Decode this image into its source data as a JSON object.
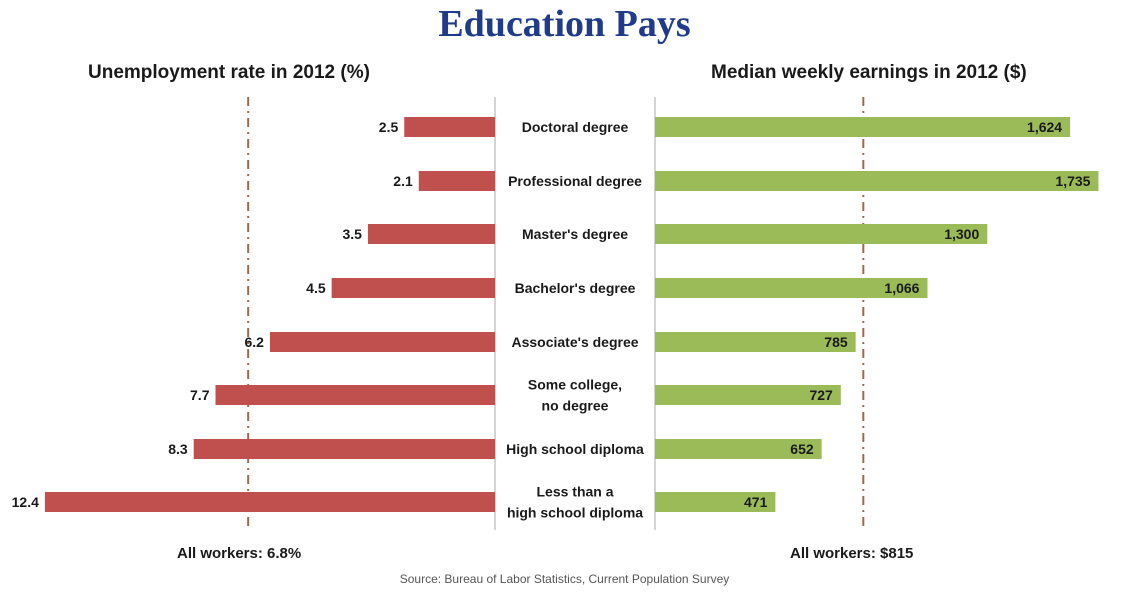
{
  "title": "Education Pays",
  "chart_data": [
    {
      "type": "bar",
      "orientation": "horizontal",
      "title": "Unemployment rate in 2012 (%)",
      "categories": [
        "Doctoral degree",
        "Professional degree",
        "Master's degree",
        "Bachelor's degree",
        "Associate's degree",
        "Some college, no degree",
        "High school diploma",
        "Less than a high school diploma"
      ],
      "values": [
        2.5,
        2.1,
        3.5,
        4.5,
        6.2,
        7.7,
        8.3,
        12.4
      ],
      "value_labels": [
        "2.5",
        "2.1",
        "3.5",
        "4.5",
        "6.2",
        "7.7",
        "8.3",
        "12.4"
      ],
      "reference_value": 6.8,
      "reference_label": "All workers: 6.8%",
      "direction": "leftward",
      "color": "#c0504d"
    },
    {
      "type": "bar",
      "orientation": "horizontal",
      "title": "Median weekly earnings in 2012 ($)",
      "categories": [
        "Doctoral degree",
        "Professional degree",
        "Master's degree",
        "Bachelor's degree",
        "Associate's degree",
        "Some college, no degree",
        "High school diploma",
        "Less than a high school diploma"
      ],
      "values": [
        1624,
        1735,
        1300,
        1066,
        785,
        727,
        652,
        471
      ],
      "value_labels": [
        "1,624",
        "1,735",
        "1,300",
        "1,066",
        "785",
        "727",
        "652",
        "471"
      ],
      "reference_value": 815,
      "reference_label": "All workers: $815",
      "direction": "rightward",
      "color": "#9bbb59"
    }
  ],
  "category_labels": [
    [
      "Doctoral degree"
    ],
    [
      "Professional degree"
    ],
    [
      "Master's degree"
    ],
    [
      "Bachelor's degree"
    ],
    [
      "Associate's degree"
    ],
    [
      "Some college,",
      "no degree"
    ],
    [
      "High school diploma"
    ],
    [
      "Less than a",
      "high school diploma"
    ]
  ],
  "reference_line_color": "#9c6b4e",
  "divider_color": "#aaaaaa",
  "source": "Source: Bureau of Labor Statistics, Current Population Survey"
}
